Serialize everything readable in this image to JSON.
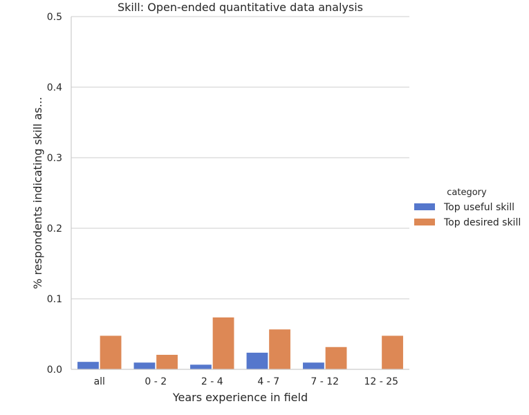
{
  "chart_data": {
    "type": "bar",
    "title": "Skill: Open-ended quantitative data analysis",
    "xlabel": "Years experience in field",
    "ylabel": "% respondents indicating skill as...",
    "categories": [
      "all",
      "0 - 2",
      "2 - 4",
      "4 - 7",
      "7 - 12",
      "12 - 25"
    ],
    "series": [
      {
        "name": "Top useful skill",
        "color": "#5577cc",
        "values": [
          0.011,
          0.01,
          0.007,
          0.024,
          0.01,
          0.0
        ]
      },
      {
        "name": "Top desired skill",
        "color": "#dd8855",
        "values": [
          0.048,
          0.021,
          0.074,
          0.057,
          0.032,
          0.048
        ]
      }
    ],
    "ylim": [
      0,
      0.5
    ],
    "yticks": [
      0.0,
      0.1,
      0.2,
      0.3,
      0.4,
      0.5
    ],
    "ytick_labels": [
      "0.0",
      "0.1",
      "0.2",
      "0.3",
      "0.4",
      "0.5"
    ],
    "grid": "horizontal",
    "legend": {
      "title": "category",
      "placement": "right"
    }
  }
}
